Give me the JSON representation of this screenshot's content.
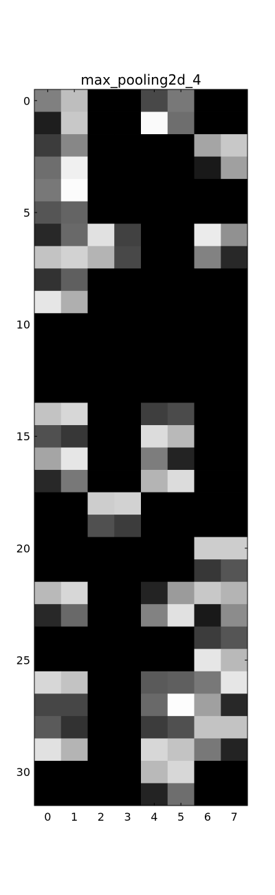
{
  "chart_data": {
    "type": "heatmap",
    "title": "max_pooling2d_4",
    "xlabel": "",
    "ylabel": "",
    "colormap": "gray",
    "value_range": [
      0,
      255
    ],
    "columns": 8,
    "rows": 32,
    "xticks": [
      0,
      1,
      2,
      3,
      4,
      5,
      6,
      7
    ],
    "xtick_labels": [
      "0",
      "1",
      "2",
      "3",
      "4",
      "5",
      "6",
      "7"
    ],
    "yticks": [
      0,
      5,
      10,
      15,
      20,
      25,
      30
    ],
    "ytick_labels": [
      "0",
      "5",
      "10",
      "15",
      "20",
      "25",
      "30"
    ],
    "values": [
      [
        128,
        190,
        0,
        0,
        72,
        120,
        0,
        0
      ],
      [
        30,
        200,
        0,
        0,
        250,
        110,
        0,
        0
      ],
      [
        60,
        135,
        0,
        0,
        0,
        0,
        165,
        200
      ],
      [
        110,
        240,
        0,
        0,
        0,
        0,
        25,
        160
      ],
      [
        120,
        252,
        0,
        0,
        0,
        0,
        0,
        0
      ],
      [
        85,
        100,
        0,
        0,
        0,
        0,
        0,
        0
      ],
      [
        40,
        105,
        225,
        65,
        0,
        0,
        235,
        145
      ],
      [
        195,
        210,
        180,
        72,
        0,
        0,
        130,
        40
      ],
      [
        50,
        95,
        0,
        0,
        0,
        0,
        0,
        0
      ],
      [
        230,
        175,
        0,
        0,
        0,
        0,
        0,
        0
      ],
      [
        0,
        0,
        0,
        0,
        0,
        0,
        0,
        0
      ],
      [
        0,
        0,
        0,
        0,
        0,
        0,
        0,
        0
      ],
      [
        0,
        0,
        0,
        0,
        0,
        0,
        0,
        0
      ],
      [
        0,
        0,
        0,
        0,
        0,
        0,
        0,
        0
      ],
      [
        195,
        215,
        0,
        0,
        62,
        75,
        0,
        0
      ],
      [
        80,
        55,
        0,
        0,
        220,
        185,
        0,
        0
      ],
      [
        165,
        230,
        0,
        0,
        125,
        35,
        0,
        0
      ],
      [
        40,
        120,
        0,
        0,
        180,
        220,
        0,
        0
      ],
      [
        0,
        0,
        205,
        210,
        0,
        0,
        0,
        0
      ],
      [
        0,
        0,
        80,
        60,
        0,
        0,
        0,
        0
      ],
      [
        0,
        0,
        0,
        0,
        0,
        0,
        205,
        205
      ],
      [
        0,
        0,
        0,
        0,
        0,
        0,
        55,
        85
      ],
      [
        185,
        215,
        0,
        0,
        35,
        155,
        200,
        180
      ],
      [
        40,
        105,
        0,
        0,
        130,
        225,
        25,
        140
      ],
      [
        0,
        0,
        0,
        0,
        0,
        0,
        60,
        85
      ],
      [
        0,
        0,
        0,
        0,
        0,
        0,
        230,
        185
      ],
      [
        215,
        195,
        0,
        0,
        90,
        95,
        120,
        230
      ],
      [
        70,
        70,
        0,
        0,
        105,
        253,
        160,
        40
      ],
      [
        90,
        50,
        0,
        0,
        60,
        80,
        195,
        195
      ],
      [
        225,
        180,
        0,
        0,
        215,
        195,
        120,
        35
      ],
      [
        0,
        0,
        0,
        0,
        185,
        215,
        0,
        0
      ],
      [
        0,
        0,
        0,
        0,
        35,
        110,
        0,
        0
      ]
    ]
  }
}
